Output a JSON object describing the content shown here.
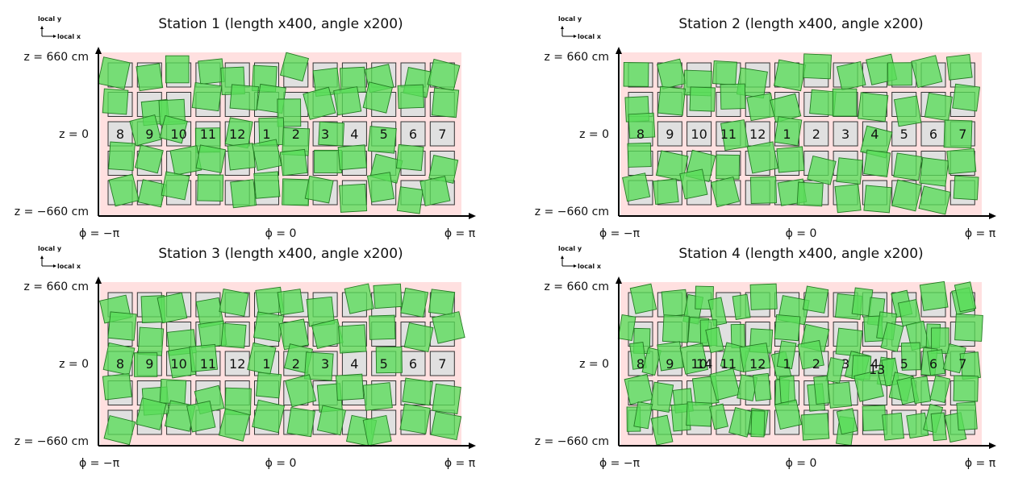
{
  "legend": {
    "local_y": "local y",
    "local_x": "local x"
  },
  "axes": {
    "z_top": "z = 660 cm",
    "z_mid": "z = 0",
    "z_bottom": "z = −660 cm",
    "phi_left": "ϕ = −π",
    "phi_mid": "ϕ = 0",
    "phi_right": "ϕ = π"
  },
  "colors": {
    "background": "#ffe0e0",
    "nominal": "#e0e0e0",
    "chamber": "#59dd59"
  },
  "stations": [
    {
      "title": "Station 1 (length x400, angle x200)",
      "wheels": [
        "8",
        "9",
        "10",
        "11",
        "12",
        "1",
        "2",
        "3",
        "4",
        "5",
        "6",
        "7"
      ]
    },
    {
      "title": "Station 2 (length x400, angle x200)",
      "wheels": [
        "8",
        "9",
        "10",
        "11",
        "12",
        "1",
        "2",
        "3",
        "4",
        "5",
        "6",
        "7"
      ]
    },
    {
      "title": "Station 3 (length x400, angle x200)",
      "wheels": [
        "8",
        "9",
        "10",
        "11",
        "12",
        "1",
        "2",
        "3",
        "4",
        "5",
        "6",
        "7"
      ]
    },
    {
      "title": "Station 4 (length x400, angle x200)",
      "wheels": [
        "8",
        "9",
        "10",
        "11",
        "12",
        "1",
        "2",
        "3",
        "4",
        "5",
        "6",
        "7"
      ],
      "extra_labels": [
        "14",
        "13"
      ]
    }
  ]
}
